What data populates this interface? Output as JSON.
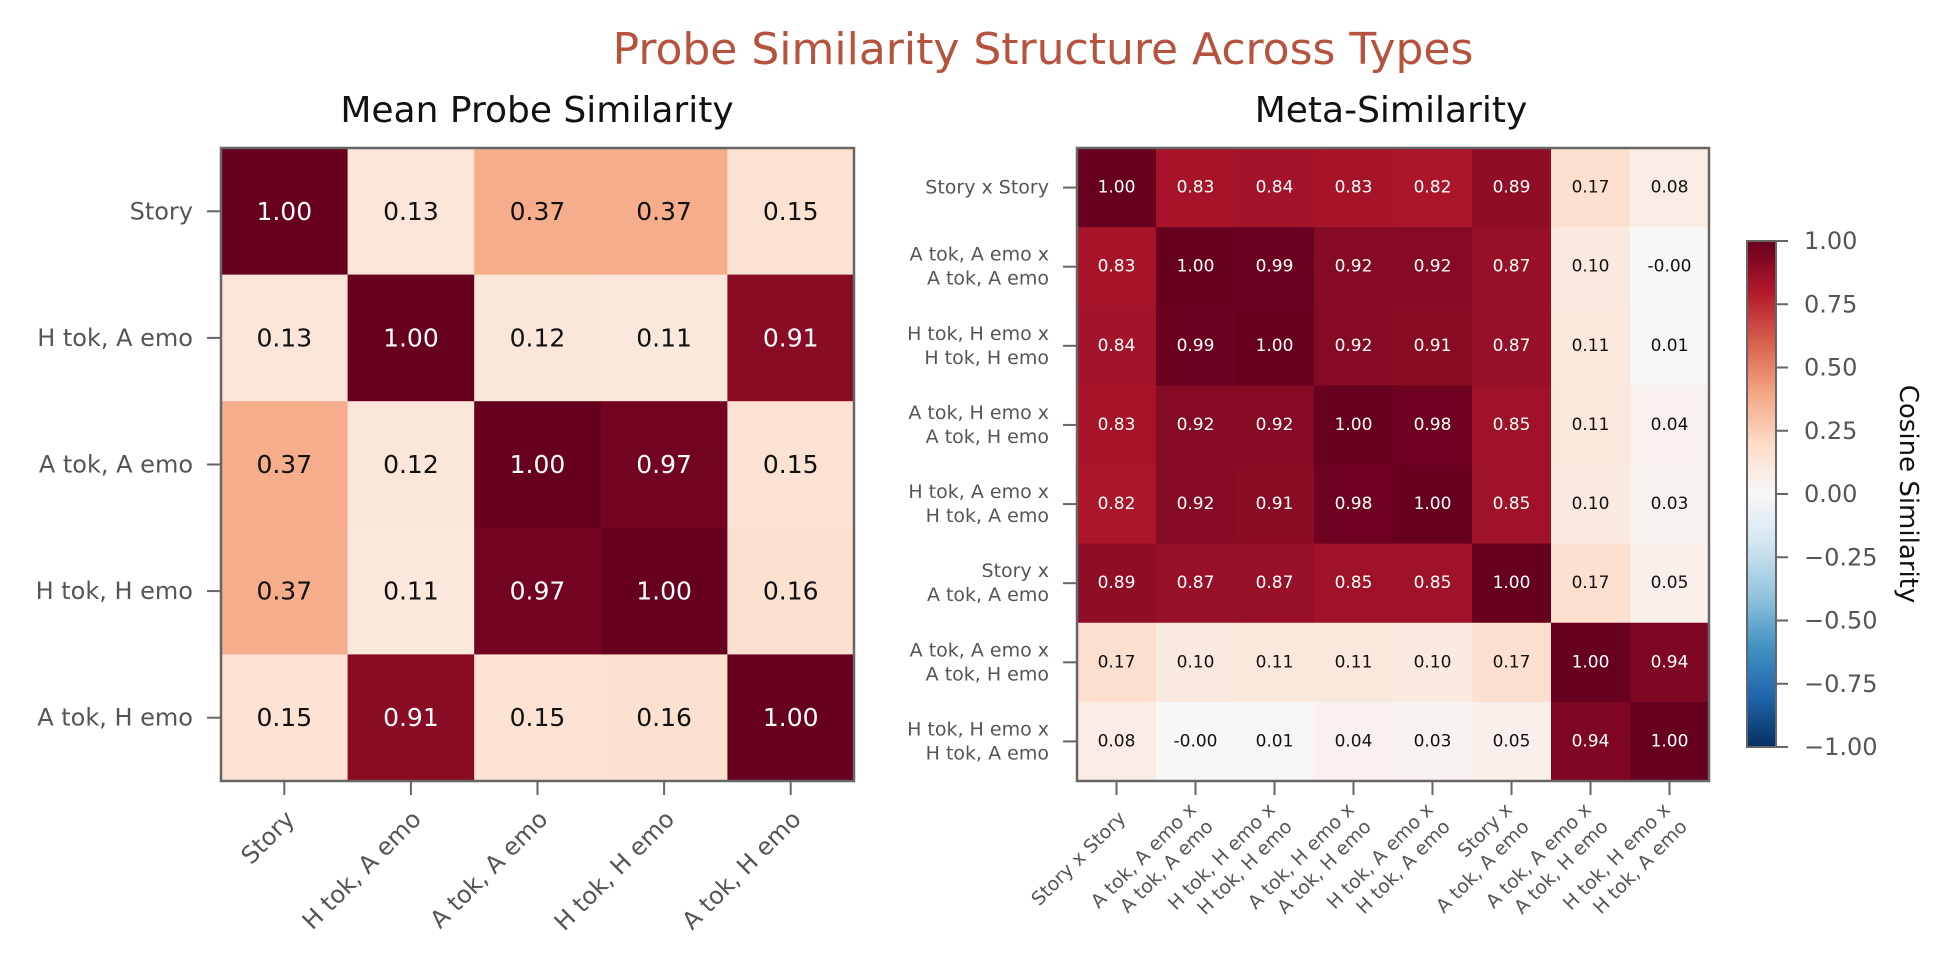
{
  "figure": {
    "title": "Probe Similarity Structure Across Types",
    "colorbar": {
      "label": "Cosine Similarity",
      "range": [
        -1.0,
        1.0
      ],
      "colormap": "RdBu_r",
      "ticks": [
        "1.00",
        "0.75",
        "0.50",
        "0.25",
        "0.00",
        "−0.25",
        "−0.50",
        "−0.75",
        "−1.00"
      ]
    },
    "colors": {
      "title": "#b5533e",
      "frame": "#666666",
      "tick_text": "#555555"
    }
  },
  "chart_data": [
    {
      "type": "heatmap",
      "title": "Mean Probe Similarity",
      "row_labels": [
        "Story",
        "H tok, A emo",
        "A tok, A emo",
        "H tok, H emo",
        "A tok, H emo"
      ],
      "col_labels": [
        "Story",
        "H tok, A emo",
        "A tok, A emo",
        "H tok, H emo",
        "A tok, H emo"
      ],
      "values": [
        [
          1.0,
          0.13,
          0.37,
          0.37,
          0.15
        ],
        [
          0.13,
          1.0,
          0.12,
          0.11,
          0.91
        ],
        [
          0.37,
          0.12,
          1.0,
          0.97,
          0.15
        ],
        [
          0.37,
          0.11,
          0.97,
          1.0,
          0.16
        ],
        [
          0.15,
          0.91,
          0.15,
          0.16,
          1.0
        ]
      ],
      "value_labels": [
        [
          "1.00",
          "0.13",
          "0.37",
          "0.37",
          "0.15"
        ],
        [
          "0.13",
          "1.00",
          "0.12",
          "0.11",
          "0.91"
        ],
        [
          "0.37",
          "0.12",
          "1.00",
          "0.97",
          "0.15"
        ],
        [
          "0.37",
          "0.11",
          "0.97",
          "1.00",
          "0.16"
        ],
        [
          "0.15",
          "0.91",
          "0.15",
          "0.16",
          "1.00"
        ]
      ],
      "vmin": -1,
      "vmax": 1
    },
    {
      "type": "heatmap",
      "title": "Meta-Similarity",
      "row_labels": [
        [
          "Story x Story"
        ],
        [
          "A tok, A emo x",
          "A tok, A emo"
        ],
        [
          "H tok, H emo x",
          "H tok, H emo"
        ],
        [
          "A tok, H emo x",
          "A tok, H emo"
        ],
        [
          "H tok, A emo x",
          "H tok, A emo"
        ],
        [
          "Story x",
          "A tok, A emo"
        ],
        [
          "A tok, A emo x",
          "A tok, H emo"
        ],
        [
          "H tok, H emo x",
          "H tok, A emo"
        ]
      ],
      "col_labels": [
        [
          "Story x Story"
        ],
        [
          "A tok, A emo x",
          "A tok, A emo"
        ],
        [
          "H tok, H emo x",
          "H tok, H emo"
        ],
        [
          "A tok, H emo x",
          "A tok, H emo"
        ],
        [
          "H tok, A emo x",
          "H tok, A emo"
        ],
        [
          "Story x",
          "A tok, A emo"
        ],
        [
          "A tok, A emo x",
          "A tok, H emo"
        ],
        [
          "H tok, H emo x",
          "H tok, A emo"
        ]
      ],
      "values": [
        [
          1.0,
          0.83,
          0.84,
          0.83,
          0.82,
          0.89,
          0.17,
          0.08
        ],
        [
          0.83,
          1.0,
          0.99,
          0.92,
          0.92,
          0.87,
          0.1,
          -0.0
        ],
        [
          0.84,
          0.99,
          1.0,
          0.92,
          0.91,
          0.87,
          0.11,
          0.01
        ],
        [
          0.83,
          0.92,
          0.92,
          1.0,
          0.98,
          0.85,
          0.11,
          0.04
        ],
        [
          0.82,
          0.92,
          0.91,
          0.98,
          1.0,
          0.85,
          0.1,
          0.03
        ],
        [
          0.89,
          0.87,
          0.87,
          0.85,
          0.85,
          1.0,
          0.17,
          0.05
        ],
        [
          0.17,
          0.1,
          0.11,
          0.11,
          0.1,
          0.17,
          1.0,
          0.94
        ],
        [
          0.08,
          -0.0,
          0.01,
          0.04,
          0.03,
          0.05,
          0.94,
          1.0
        ]
      ],
      "value_labels": [
        [
          "1.00",
          "0.83",
          "0.84",
          "0.83",
          "0.82",
          "0.89",
          "0.17",
          "0.08"
        ],
        [
          "0.83",
          "1.00",
          "0.99",
          "0.92",
          "0.92",
          "0.87",
          "0.10",
          "-0.00"
        ],
        [
          "0.84",
          "0.99",
          "1.00",
          "0.92",
          "0.91",
          "0.87",
          "0.11",
          "0.01"
        ],
        [
          "0.83",
          "0.92",
          "0.92",
          "1.00",
          "0.98",
          "0.85",
          "0.11",
          "0.04"
        ],
        [
          "0.82",
          "0.92",
          "0.91",
          "0.98",
          "1.00",
          "0.85",
          "0.10",
          "0.03"
        ],
        [
          "0.89",
          "0.87",
          "0.87",
          "0.85",
          "0.85",
          "1.00",
          "0.17",
          "0.05"
        ],
        [
          "0.17",
          "0.10",
          "0.11",
          "0.11",
          "0.10",
          "0.17",
          "1.00",
          "0.94"
        ],
        [
          "0.08",
          "-0.00",
          "0.01",
          "0.04",
          "0.03",
          "0.05",
          "0.94",
          "1.00"
        ]
      ],
      "vmin": -1,
      "vmax": 1
    }
  ]
}
